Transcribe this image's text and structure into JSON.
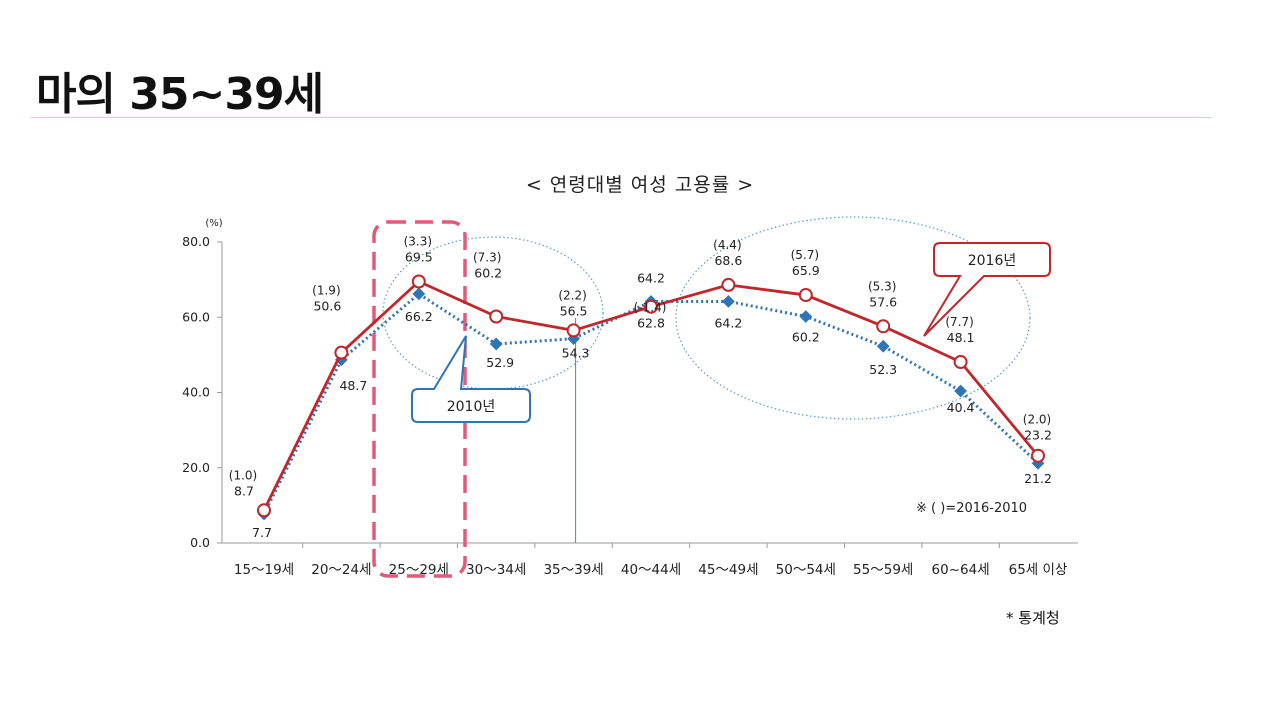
{
  "slide": {
    "title": "마의 35~39세",
    "source": "* 통계청"
  },
  "chart_data": {
    "type": "line",
    "title": "< 연령대별 여성 고용률 >",
    "ylabel": "(%)",
    "ylim": [
      0,
      80
    ],
    "yticks": [
      "0.0",
      "20.0",
      "40.0",
      "60.0",
      "80.0"
    ],
    "categories": [
      "15～19세",
      "20～24세",
      "25～29세",
      "30～34세",
      "35～39세",
      "40～44세",
      "45～49세",
      "50～54세",
      "55～59세",
      "60~64세",
      "65세 이상"
    ],
    "series": [
      {
        "name": "2016년",
        "values": [
          8.7,
          50.6,
          69.5,
          60.2,
          56.5,
          62.8,
          68.6,
          65.9,
          57.6,
          48.1,
          23.2
        ],
        "labels": [
          "8.7",
          "50.6",
          "69.5",
          "60.2",
          "56.5",
          "62.8",
          "68.6",
          "65.9",
          "57.6",
          "48.1",
          "23.2"
        ],
        "color": "#c0272d",
        "style": "solid-circle"
      },
      {
        "name": "2010년",
        "values": [
          7.7,
          48.7,
          66.2,
          52.9,
          54.3,
          64.2,
          64.2,
          60.2,
          52.3,
          40.4,
          21.2
        ],
        "labels": [
          "7.7",
          "48.7",
          "66.2",
          "52.9",
          "54.3",
          "64.2",
          "64.2",
          "60.2",
          "52.3",
          "40.4",
          "21.2"
        ],
        "color": "#2e75b6",
        "style": "dotted-diamond"
      }
    ],
    "differences": [
      "(1.0)",
      "(1.9)",
      "(3.3)",
      "(7.3)",
      "(2.2)",
      "(-1.4)",
      "(4.4)",
      "(5.7)",
      "(5.3)",
      "(7.7)",
      "(2.0)"
    ],
    "note": "※ (   )=2016-2010",
    "callouts": [
      "2016년",
      "2010년"
    ],
    "highlight_category": "25～29세"
  }
}
